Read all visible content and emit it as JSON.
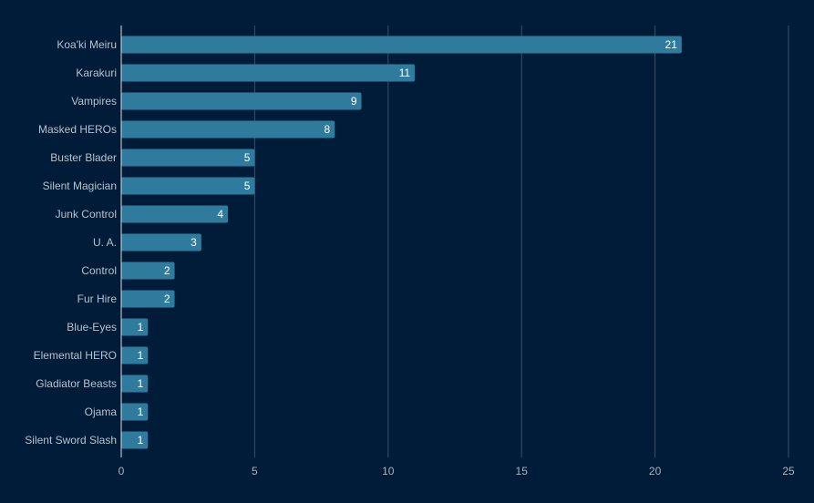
{
  "chart_data": {
    "type": "bar",
    "orientation": "horizontal",
    "title": "",
    "xlabel": "",
    "ylabel": "",
    "categories": [
      "Koa'ki Meiru",
      "Karakuri",
      "Vampires",
      "Masked HEROs",
      "Buster Blader",
      "Silent Magician",
      "Junk Control",
      "U. A.",
      "Control",
      "Fur Hire",
      "Blue-Eyes",
      "Elemental HERO",
      "Gladiator Beasts",
      "Ojama",
      "Silent Sword Slash"
    ],
    "values": [
      21,
      11,
      9,
      8,
      5,
      5,
      4,
      3,
      2,
      2,
      1,
      1,
      1,
      1,
      1
    ],
    "xlim": [
      0,
      25
    ],
    "xticks": [
      0,
      5,
      10,
      15,
      20,
      25
    ],
    "grid": "vertical",
    "legend": "none",
    "colors": {
      "bar": "#2e7b9d",
      "background": "#011c39"
    }
  }
}
